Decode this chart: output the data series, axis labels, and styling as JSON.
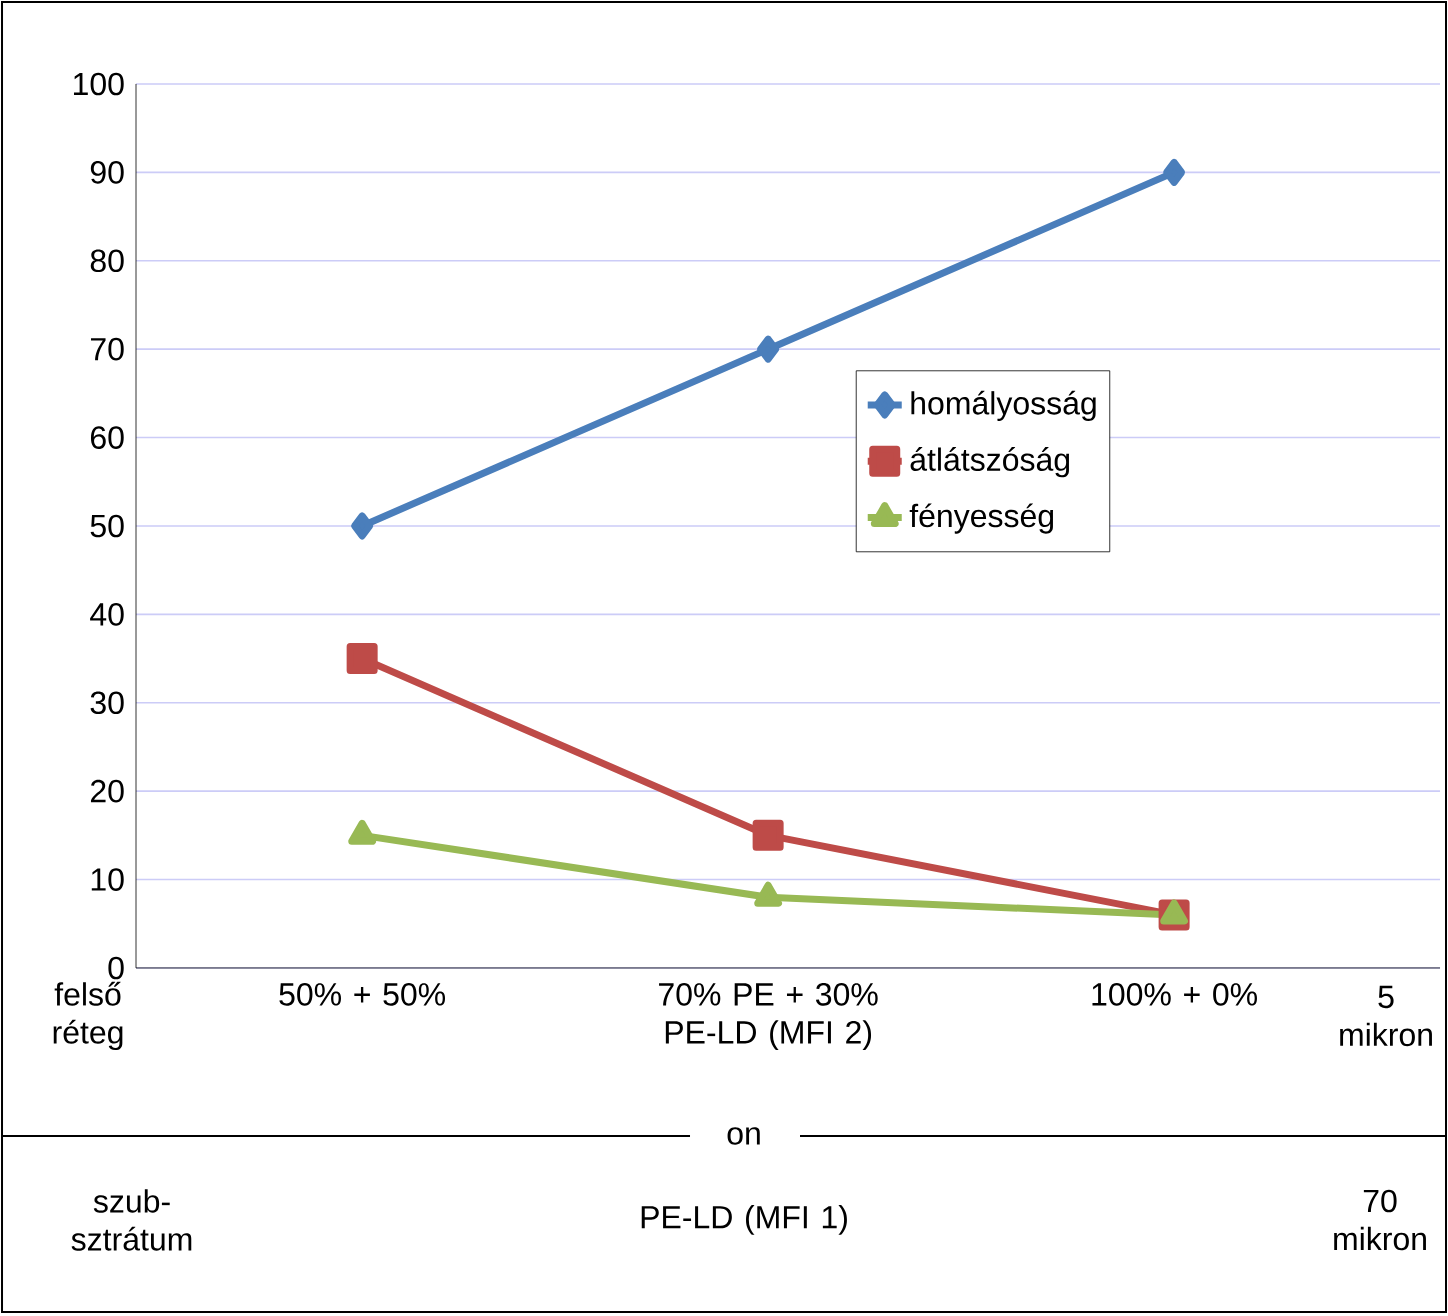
{
  "chart_data": {
    "type": "line",
    "categories": [
      "50% + 50%",
      "70% PE + 30% PE-LD (MFI 2)",
      "100% + 0%"
    ],
    "series": [
      {
        "name": "homályosság",
        "color": "#4a7ebb",
        "marker": "diamond",
        "values": [
          50,
          70,
          90
        ]
      },
      {
        "name": "átlátszóság",
        "color": "#be4b48",
        "marker": "square",
        "values": [
          35,
          15,
          6
        ]
      },
      {
        "name": "fényesség",
        "color": "#98b954",
        "marker": "triangle",
        "values": [
          15,
          8,
          6
        ]
      }
    ],
    "ylim": [
      0,
      100
    ],
    "yticks": [
      0,
      10,
      20,
      30,
      40,
      50,
      60,
      70,
      80,
      90,
      100
    ],
    "grid": "y",
    "legend": "right",
    "annotations": [
      "felső réteg",
      "5 mikron",
      "on",
      "szub-sztrátum",
      "PE-LD (MFI 1)",
      "70 mikron"
    ]
  }
}
